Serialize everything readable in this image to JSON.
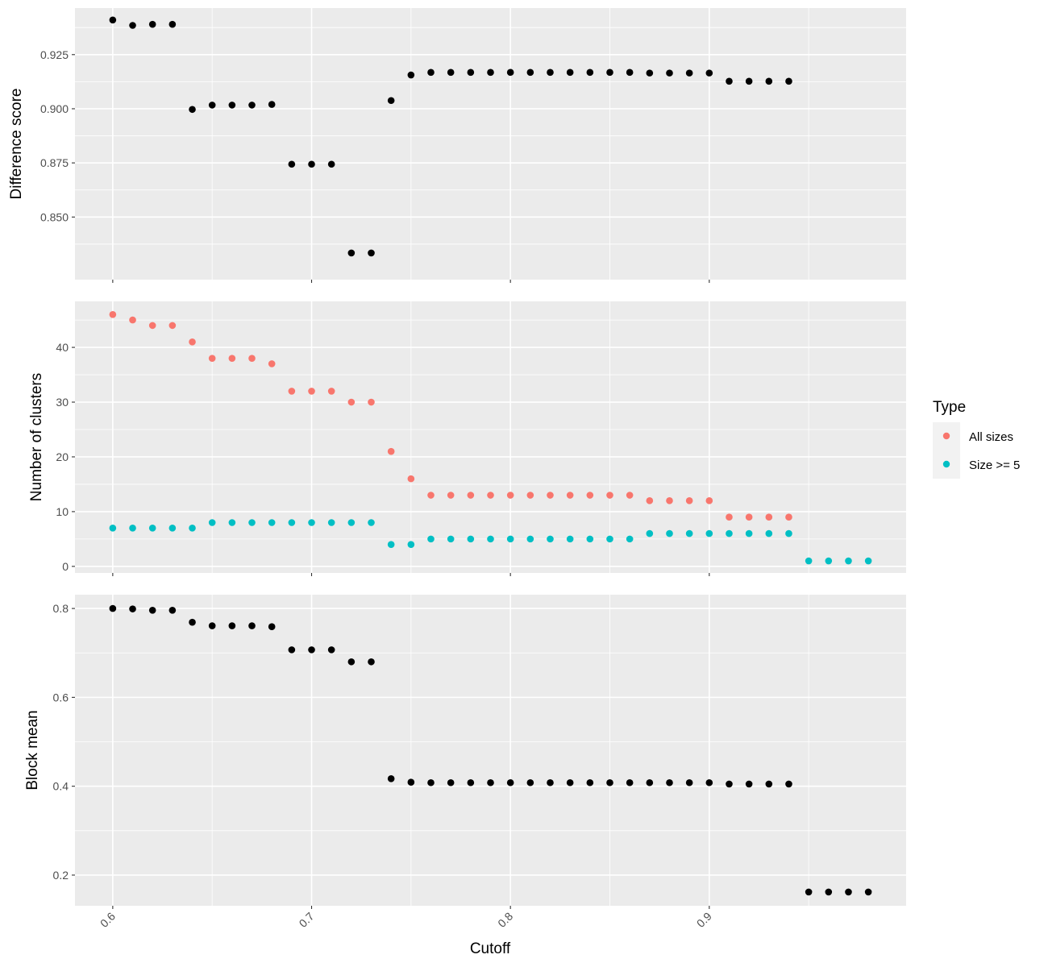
{
  "chart_data": {
    "type": "scatter",
    "xlabel": "Cutoff",
    "x_ticks": [
      "0.6",
      "0.7",
      "0.8",
      "0.9"
    ],
    "xlim": [
      0.581,
      0.999
    ],
    "legend": {
      "title": "Type",
      "placement": "right",
      "entries": [
        {
          "label": "All sizes",
          "color": "#F8766D"
        },
        {
          "label": "Size >= 5",
          "color": "#00BFC4"
        }
      ]
    },
    "panels": [
      {
        "ylabel": "Difference score",
        "ylim": [
          0.8211,
          0.9465
        ],
        "y_ticks": [
          0.85,
          0.875,
          0.9,
          0.925
        ],
        "y_tick_labels": [
          "0.850",
          "0.875",
          "0.900",
          "0.925"
        ],
        "series": [
          {
            "color": "#000000",
            "x": [
              0.6,
              0.61,
              0.62,
              0.63,
              0.64,
              0.65,
              0.66,
              0.67,
              0.68,
              0.69,
              0.7,
              0.71,
              0.72,
              0.73,
              0.74,
              0.75,
              0.76,
              0.77,
              0.78,
              0.79,
              0.8,
              0.81,
              0.82,
              0.83,
              0.84,
              0.85,
              0.86,
              0.87,
              0.88,
              0.89,
              0.9,
              0.91,
              0.92,
              0.93,
              0.94
            ],
            "y": [
              0.941,
              0.9385,
              0.939,
              0.939,
              0.8997,
              0.9017,
              0.9017,
              0.9017,
              0.902,
              0.8744,
              0.8744,
              0.8744,
              0.8334,
              0.8334,
              0.9038,
              0.9156,
              0.9168,
              0.9168,
              0.9168,
              0.9168,
              0.9168,
              0.9168,
              0.9168,
              0.9168,
              0.9168,
              0.9168,
              0.9168,
              0.9165,
              0.9165,
              0.9165,
              0.9165,
              0.9127,
              0.9127,
              0.9127,
              0.9127
            ]
          }
        ]
      },
      {
        "ylabel": "Number of clusters",
        "ylim": [
          -1.2,
          48.4
        ],
        "y_ticks": [
          0,
          10,
          20,
          30,
          40
        ],
        "y_tick_labels": [
          "0",
          "10",
          "20",
          "30",
          "40"
        ],
        "series": [
          {
            "color": "#F8766D",
            "x": [
              0.6,
              0.61,
              0.62,
              0.63,
              0.64,
              0.65,
              0.66,
              0.67,
              0.68,
              0.69,
              0.7,
              0.71,
              0.72,
              0.73,
              0.74,
              0.75,
              0.76,
              0.77,
              0.78,
              0.79,
              0.8,
              0.81,
              0.82,
              0.83,
              0.84,
              0.85,
              0.86,
              0.87,
              0.88,
              0.89,
              0.9,
              0.91,
              0.92,
              0.93,
              0.94
            ],
            "y": [
              46,
              45,
              44,
              44,
              41,
              38,
              38,
              38,
              37,
              32,
              32,
              32,
              30,
              30,
              21,
              16,
              13,
              13,
              13,
              13,
              13,
              13,
              13,
              13,
              13,
              13,
              13,
              12,
              12,
              12,
              12,
              9,
              9,
              9,
              9
            ]
          },
          {
            "color": "#00BFC4",
            "x": [
              0.6,
              0.61,
              0.62,
              0.63,
              0.64,
              0.65,
              0.66,
              0.67,
              0.68,
              0.69,
              0.7,
              0.71,
              0.72,
              0.73,
              0.74,
              0.75,
              0.76,
              0.77,
              0.78,
              0.79,
              0.8,
              0.81,
              0.82,
              0.83,
              0.84,
              0.85,
              0.86,
              0.87,
              0.88,
              0.89,
              0.9,
              0.91,
              0.92,
              0.93,
              0.94,
              0.95,
              0.96,
              0.97,
              0.98
            ],
            "y": [
              7,
              7,
              7,
              7,
              7,
              8,
              8,
              8,
              8,
              8,
              8,
              8,
              8,
              8,
              4,
              4,
              5,
              5,
              5,
              5,
              5,
              5,
              5,
              5,
              5,
              5,
              5,
              6,
              6,
              6,
              6,
              6,
              6,
              6,
              6,
              1,
              1,
              1,
              1
            ]
          }
        ]
      },
      {
        "ylabel": "Block mean",
        "ylim": [
          0.131,
          0.831
        ],
        "y_ticks": [
          0.2,
          0.4,
          0.6,
          0.8
        ],
        "y_tick_labels": [
          "0.2",
          "0.4",
          "0.6",
          "0.8"
        ],
        "series": [
          {
            "color": "#000000",
            "x": [
              0.6,
              0.61,
              0.62,
              0.63,
              0.64,
              0.65,
              0.66,
              0.67,
              0.68,
              0.69,
              0.7,
              0.71,
              0.72,
              0.73,
              0.74,
              0.75,
              0.76,
              0.77,
              0.78,
              0.79,
              0.8,
              0.81,
              0.82,
              0.83,
              0.84,
              0.85,
              0.86,
              0.87,
              0.88,
              0.89,
              0.9,
              0.91,
              0.92,
              0.93,
              0.94,
              0.95,
              0.96,
              0.97,
              0.98
            ],
            "y": [
              0.8,
              0.799,
              0.796,
              0.796,
              0.769,
              0.761,
              0.761,
              0.761,
              0.759,
              0.707,
              0.707,
              0.707,
              0.68,
              0.68,
              0.417,
              0.409,
              0.408,
              0.408,
              0.408,
              0.408,
              0.408,
              0.408,
              0.408,
              0.408,
              0.408,
              0.408,
              0.408,
              0.408,
              0.408,
              0.408,
              0.408,
              0.405,
              0.405,
              0.405,
              0.405,
              0.162,
              0.162,
              0.162,
              0.162
            ]
          }
        ]
      }
    ]
  }
}
